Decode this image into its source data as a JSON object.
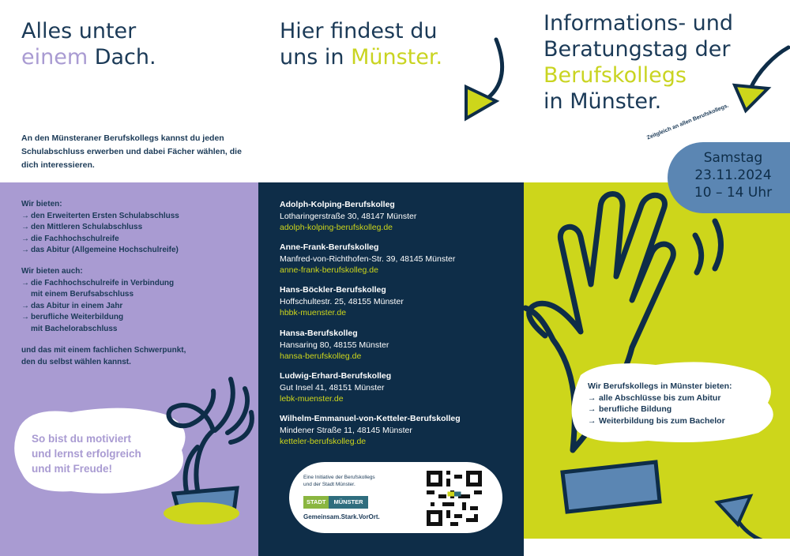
{
  "col1": {
    "headline_l1": "Alles unter",
    "headline_l2_a": "einem",
    "headline_l2_b": " Dach.",
    "intro": "An den Münsteraner Berufskollegs kannst du jeden Schulabschluss erwerben und dabei Fächer wählen, die dich interessieren.",
    "offer_title": "Wir bieten:",
    "offers": [
      "den Erweiterten Ersten Schulabschluss",
      "den Mittleren Schulabschluss",
      "die Fachhochschulreife",
      "das Abitur (Allgemeine Hochschulreife)"
    ],
    "offer2_title": "Wir bieten auch:",
    "offers2": [
      {
        "l1": "die Fachhochschulreife in Verbindung",
        "l2": "mit einem Berufsabschluss"
      },
      {
        "l1": "das Abitur in einem Jahr",
        "l2": ""
      },
      {
        "l1": "berufliche Weiterbildung",
        "l2": "mit Bachelorabschluss"
      }
    ],
    "closing_l1": "und das mit einem fachlichen Schwerpunkt,",
    "closing_l2": "den du selbst wählen kannst.",
    "cloud_l1": "So bist du motiviert",
    "cloud_l2": "und lernst erfolgreich",
    "cloud_l3": "und mit Freude!"
  },
  "col2": {
    "headline_l1": "Hier findest du",
    "headline_l2_a": "uns in ",
    "headline_l2_b": "Münster.",
    "schools": [
      {
        "name": "Adolph-Kolping-Berufskolleg",
        "address": "Lotharingerstraße 30, 48147 Münster",
        "url": "adolph-kolping-berufskolleg.de"
      },
      {
        "name": "Anne-Frank-Berufskolleg",
        "address": "Manfred-von-Richthofen-Str. 39, 48145 Münster",
        "url": "anne-frank-berufskolleg.de"
      },
      {
        "name": "Hans-Böckler-Berufskolleg",
        "address": "Hoffschultestr. 25, 48155 Münster",
        "url": "hbbk-muenster.de"
      },
      {
        "name": "Hansa-Berufskolleg",
        "address": "Hansaring 80, 48155 Münster",
        "url": "hansa-berufskolleg.de"
      },
      {
        "name": "Ludwig-Erhard-Berufskolleg",
        "address": "Gut Insel 41, 48151 Münster",
        "url": "lebk-muenster.de"
      },
      {
        "name": "Wilhelm-Emmanuel-von-Ketteler-Berufskolleg",
        "address": "Mindener Straße 11, 48145 Münster",
        "url": "ketteler-berufskolleg.de"
      }
    ],
    "partner_l1": "Eine Initiative der Berufskollegs",
    "partner_l2": "und der Stadt Münster.",
    "logo_a": "STADT",
    "logo_b": "MÜNSTER",
    "slogan": "Gemeinsam.Stark.VorOrt."
  },
  "col3": {
    "headline_l1": "Informations- und",
    "headline_l2": "Beratungstag der",
    "headline_l3": "Berufskollegs",
    "headline_l4": "in Münster.",
    "rot_note": "Zeitgleich an allen Berufskollegs.",
    "date_l1": "Samstag",
    "date_l2": "23.11.2024",
    "date_l3": "10 – 14 Uhr",
    "box_title": "Wir Berufskollegs in Münster bieten:",
    "box_items": [
      "alle Abschlüsse bis zum Abitur",
      "berufliche Bildung",
      "Weiterbildung bis zum Bachelor"
    ]
  }
}
